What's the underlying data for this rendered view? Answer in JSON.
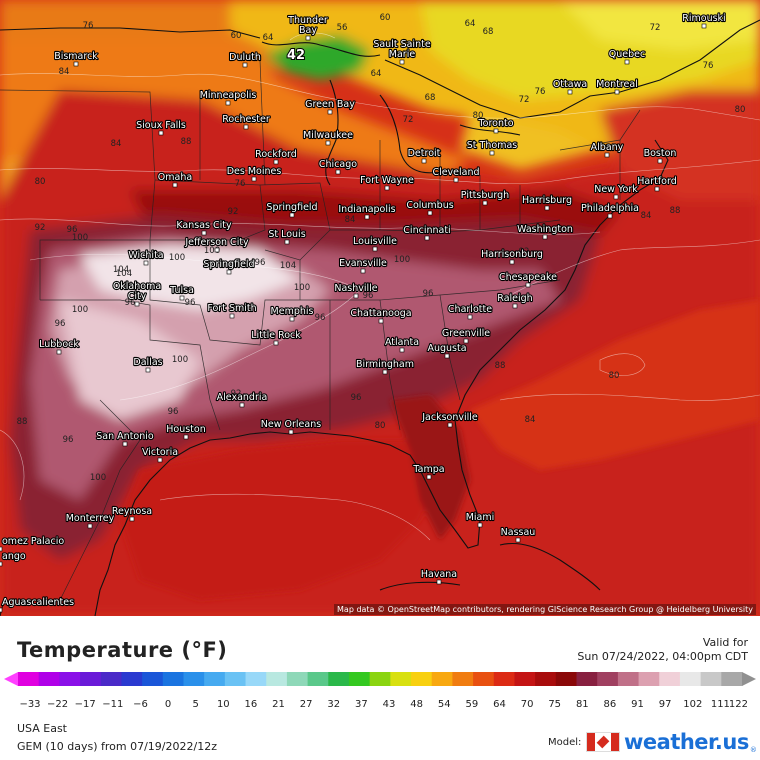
{
  "map": {
    "attribution": "Map data © OpenStreetMap contributors, rendering GIScience Research Group @ Heidelberg University",
    "extreme_label": "42",
    "cities": [
      {
        "name": "Thunder Bay",
        "lines": [
          "Thunder",
          "Bay"
        ]
      },
      {
        "name": "Sault Sainte Marie",
        "lines": [
          "Sault Sainte",
          "Marie"
        ]
      },
      {
        "name": "Rimouski",
        "lines": [
          "Rimouski"
        ]
      },
      {
        "name": "Bismarck",
        "lines": [
          "Bismarck"
        ]
      },
      {
        "name": "Duluth",
        "lines": [
          "Duluth"
        ]
      },
      {
        "name": "Quebec",
        "lines": [
          "Quebec"
        ]
      },
      {
        "name": "Ottawa",
        "lines": [
          "Ottawa"
        ]
      },
      {
        "name": "Montreal",
        "lines": [
          "Montreal"
        ]
      },
      {
        "name": "Minneapolis",
        "lines": [
          "Minneapolis"
        ]
      },
      {
        "name": "Green Bay",
        "lines": [
          "Green Bay"
        ]
      },
      {
        "name": "Rochester",
        "lines": [
          "Rochester"
        ]
      },
      {
        "name": "Toronto",
        "lines": [
          "Toronto"
        ]
      },
      {
        "name": "Sioux Falls",
        "lines": [
          "Sioux Falls"
        ]
      },
      {
        "name": "Milwaukee",
        "lines": [
          "Milwaukee"
        ]
      },
      {
        "name": "Albany",
        "lines": [
          "Albany"
        ]
      },
      {
        "name": "Boston",
        "lines": [
          "Boston"
        ]
      },
      {
        "name": "St Thomas",
        "lines": [
          "St Thomas"
        ]
      },
      {
        "name": "Rockford",
        "lines": [
          "Rockford"
        ]
      },
      {
        "name": "Detroit",
        "lines": [
          "Detroit"
        ]
      },
      {
        "name": "Des Moines",
        "lines": [
          "Des Moines"
        ]
      },
      {
        "name": "Chicago",
        "lines": [
          "Chicago"
        ]
      },
      {
        "name": "Hartford",
        "lines": [
          "Hartford"
        ]
      },
      {
        "name": "Cleveland",
        "lines": [
          "Cleveland"
        ]
      },
      {
        "name": "Omaha",
        "lines": [
          "Omaha"
        ]
      },
      {
        "name": "Fort Wayne",
        "lines": [
          "Fort Wayne"
        ]
      },
      {
        "name": "New York",
        "lines": [
          "New York"
        ]
      },
      {
        "name": "Pittsburgh",
        "lines": [
          "Pittsburgh"
        ]
      },
      {
        "name": "Harrisburg",
        "lines": [
          "Harrisburg"
        ]
      },
      {
        "name": "Springfield",
        "lines": [
          "Springfield"
        ]
      },
      {
        "name": "Indianapolis",
        "lines": [
          "Indianapolis"
        ]
      },
      {
        "name": "Columbus",
        "lines": [
          "Columbus"
        ]
      },
      {
        "name": "Philadelphia",
        "lines": [
          "Philadelphia"
        ]
      },
      {
        "name": "Kansas City",
        "lines": [
          "Kansas City"
        ]
      },
      {
        "name": "Washington",
        "lines": [
          "Washington"
        ]
      },
      {
        "name": "Cincinnati",
        "lines": [
          "Cincinnati"
        ]
      },
      {
        "name": "Jefferson City",
        "lines": [
          "Jefferson City"
        ]
      },
      {
        "name": "St Louis",
        "lines": [
          "St Louis"
        ]
      },
      {
        "name": "Louisville",
        "lines": [
          "Louisville"
        ]
      },
      {
        "name": "Wichita",
        "lines": [
          "Wichita"
        ]
      },
      {
        "name": "Harrisonburg",
        "lines": [
          "Harrisonburg"
        ]
      },
      {
        "name": "Springfield",
        "lines": [
          "Springfield"
        ]
      },
      {
        "name": "Evansville",
        "lines": [
          "Evansville"
        ]
      },
      {
        "name": "Chesapeake",
        "lines": [
          "Chesapeake"
        ]
      },
      {
        "name": "Tulsa",
        "lines": [
          "Tulsa"
        ]
      },
      {
        "name": "Nashville",
        "lines": [
          "Nashville"
        ]
      },
      {
        "name": "Oklahoma City",
        "lines": [
          "Oklahoma",
          "City"
        ]
      },
      {
        "name": "Raleigh",
        "lines": [
          "Raleigh"
        ]
      },
      {
        "name": "Fort Smith",
        "lines": [
          "Fort Smith"
        ]
      },
      {
        "name": "Memphis",
        "lines": [
          "Memphis"
        ]
      },
      {
        "name": "Chattanooga",
        "lines": [
          "Chattanooga"
        ]
      },
      {
        "name": "Charlotte",
        "lines": [
          "Charlotte"
        ]
      },
      {
        "name": "Little Rock",
        "lines": [
          "Little Rock"
        ]
      },
      {
        "name": "Greenville",
        "lines": [
          "Greenville"
        ]
      },
      {
        "name": "Lubbock",
        "lines": [
          "Lubbock"
        ]
      },
      {
        "name": "Atlanta",
        "lines": [
          "Atlanta"
        ]
      },
      {
        "name": "Augusta",
        "lines": [
          "Augusta"
        ]
      },
      {
        "name": "Birmingham",
        "lines": [
          "Birmingham"
        ]
      },
      {
        "name": "Dallas",
        "lines": [
          "Dallas"
        ]
      },
      {
        "name": "Alexandria",
        "lines": [
          "Alexandria"
        ]
      },
      {
        "name": "Jacksonville",
        "lines": [
          "Jacksonville"
        ]
      },
      {
        "name": "New Orleans",
        "lines": [
          "New Orleans"
        ]
      },
      {
        "name": "San Antonio",
        "lines": [
          "San Antonio"
        ]
      },
      {
        "name": "Houston",
        "lines": [
          "Houston"
        ]
      },
      {
        "name": "Victoria",
        "lines": [
          "Victoria"
        ]
      },
      {
        "name": "Tampa",
        "lines": [
          "Tampa"
        ]
      },
      {
        "name": "Reynosa",
        "lines": [
          "Reynosa"
        ]
      },
      {
        "name": "Miami",
        "lines": [
          "Miami"
        ]
      },
      {
        "name": "Monterrey",
        "lines": [
          "Monterrey"
        ]
      },
      {
        "name": "Nassau",
        "lines": [
          "Nassau"
        ]
      },
      {
        "name": "Gomez Palacio",
        "lines": [
          "omez Palacio"
        ]
      },
      {
        "name": "Durango",
        "lines": [
          "ango"
        ]
      },
      {
        "name": "Havana",
        "lines": [
          "Havana"
        ]
      },
      {
        "name": "Aguascalientes",
        "lines": [
          "Aguascalientes"
        ]
      }
    ],
    "isotherm_labels": [
      "76",
      "84",
      "60",
      "64",
      "68",
      "72",
      "56",
      "60",
      "64",
      "68",
      "72",
      "80",
      "60",
      "64",
      "68",
      "72",
      "76",
      "72",
      "76",
      "80",
      "84",
      "88",
      "92",
      "96",
      "100",
      "104",
      "104",
      "108",
      "100",
      "96",
      "100",
      "96",
      "92",
      "96",
      "100",
      "96",
      "100",
      "96",
      "88",
      "92",
      "96",
      "100",
      "84",
      "88",
      "80",
      "84",
      "80",
      "84",
      "76",
      "80",
      "88",
      "92",
      "96",
      "96",
      "100",
      "104",
      "100",
      "96",
      "96"
    ]
  },
  "footer": {
    "title": "Temperature (°F)",
    "valid_label": "Valid for",
    "valid_date": "Sun 07/24/2022, 04:00pm CDT",
    "region": "USA East",
    "model_run": "GEM (10 days) from 07/19/2022/12z",
    "model_label": "Model:",
    "logo_main": "weather.",
    "logo_suffix": "us",
    "logo_reg": "®"
  },
  "scale": {
    "ticks": [
      "−33",
      "−22",
      "−17",
      "−11",
      "−6",
      "0",
      "5",
      "10",
      "16",
      "21",
      "27",
      "32",
      "37",
      "43",
      "48",
      "54",
      "59",
      "64",
      "70",
      "75",
      "81",
      "86",
      "91",
      "97",
      "102",
      "111",
      "122"
    ],
    "colors": [
      "#e000e0",
      "#b000e8",
      "#8a10e8",
      "#6a1ad8",
      "#4a2ac8",
      "#2a3ad0",
      "#1a56d8",
      "#1a74e0",
      "#2a90ea",
      "#46aaf0",
      "#6ac2f4",
      "#98d8f8",
      "#b8e8e0",
      "#8ed8b8",
      "#5ac88a",
      "#2ab84a",
      "#34c820",
      "#8ad410",
      "#d8e010",
      "#f8d010",
      "#f8a810",
      "#f07c10",
      "#e85010",
      "#dc2a14",
      "#c41414",
      "#a80c0c",
      "#8a0808",
      "#882040",
      "#a04060",
      "#c07088",
      "#dca0b0",
      "#f0d0d8",
      "#e8e8e8",
      "#c8c8c8",
      "#a8a8a8"
    ],
    "arrow_left_color": "#ff40ff",
    "arrow_right_color": "#909090"
  },
  "palette": {
    "green": "#2ea82a",
    "yellow": "#e8d820",
    "orange": "#ee8a18",
    "red": "#d42a18",
    "dark_red": "#9a1010",
    "maroon": "#7a2030",
    "pink": "#c88a98",
    "white": "#f6eef0",
    "ocean": "#d63018"
  }
}
